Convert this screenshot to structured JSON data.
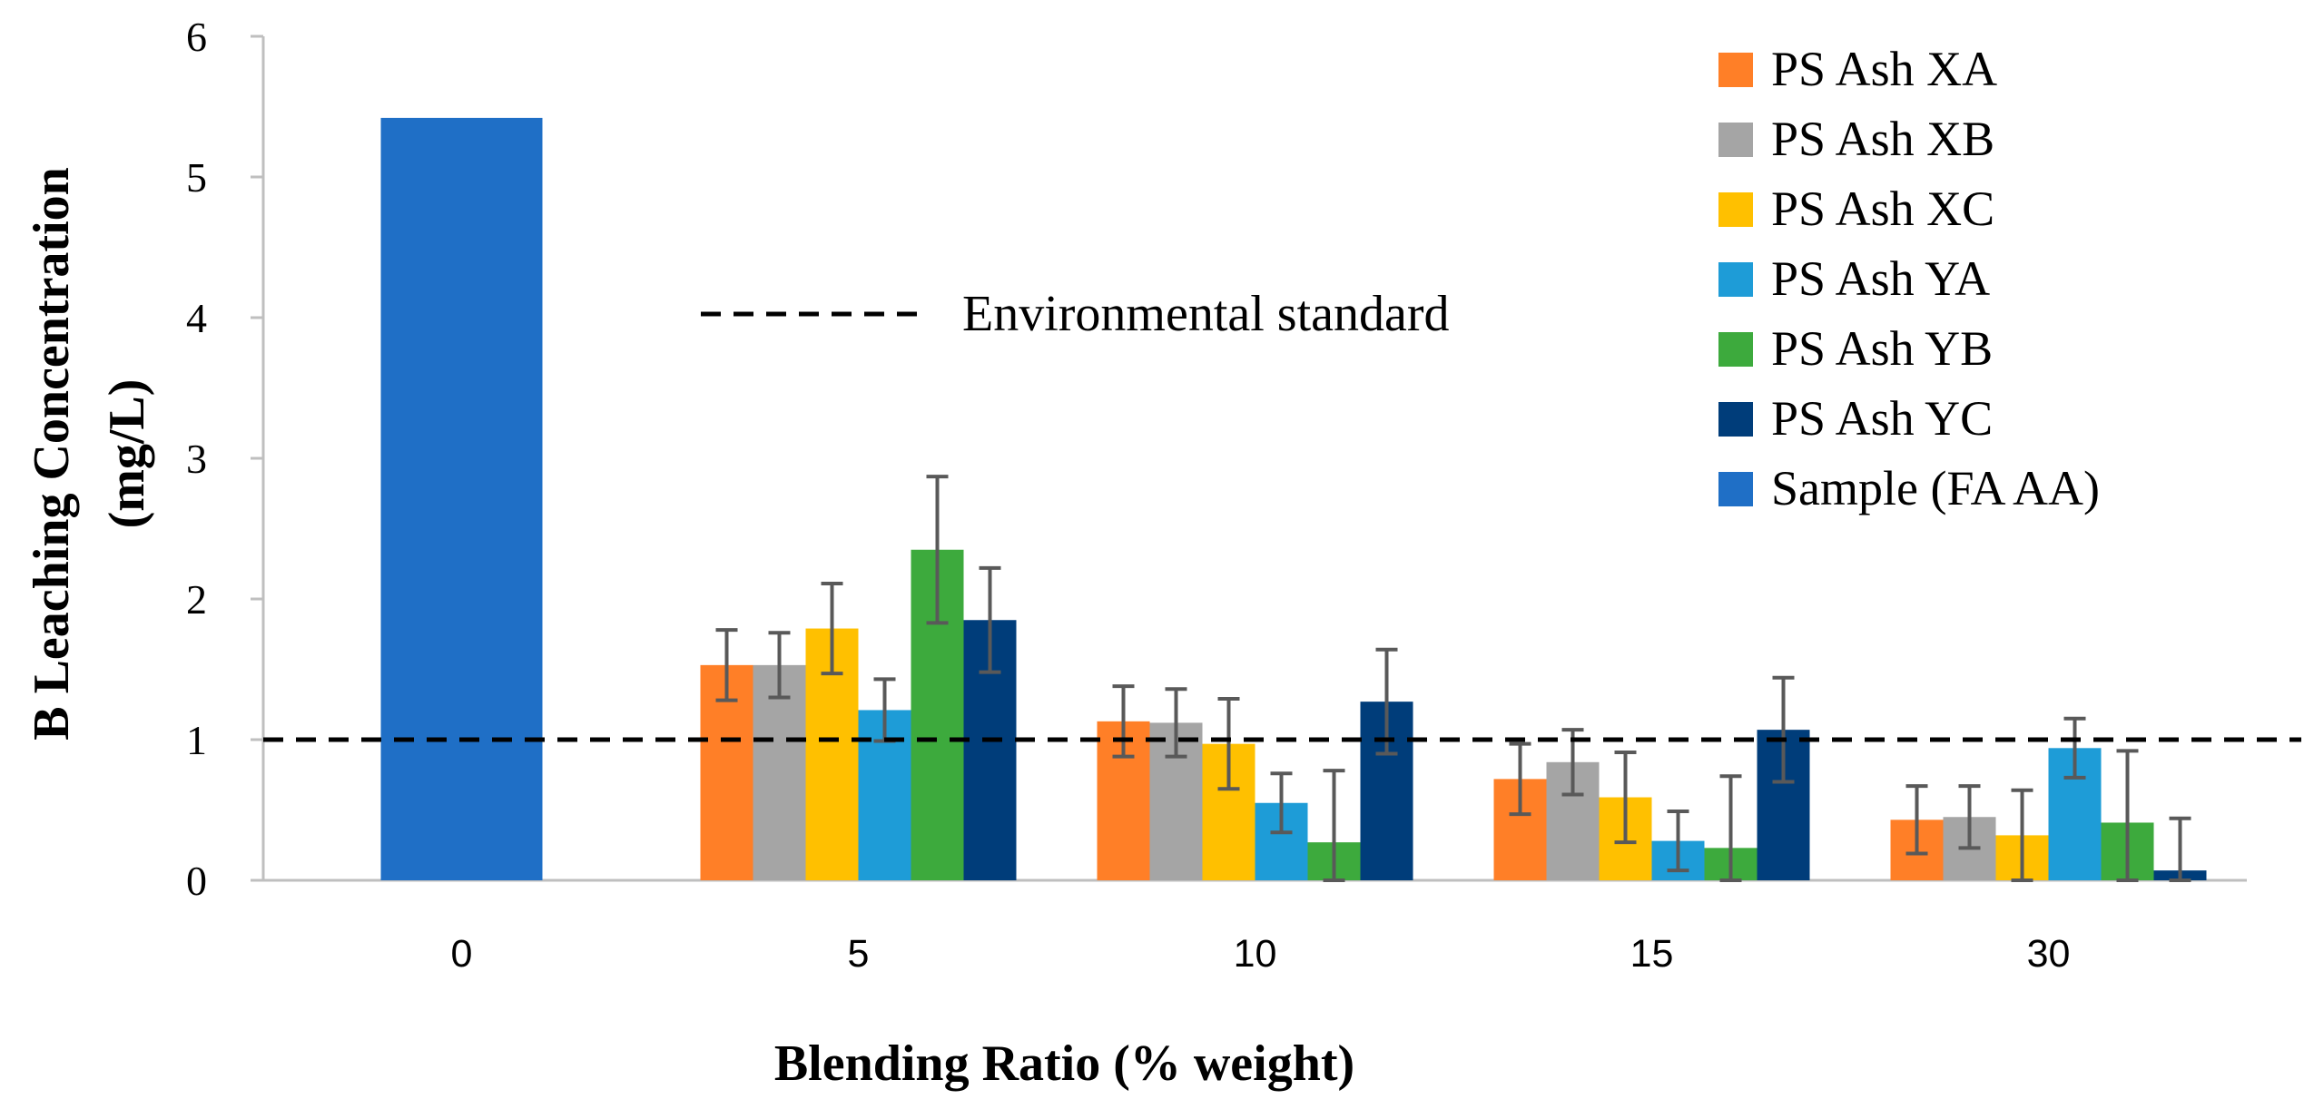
{
  "chart_data": {
    "type": "bar",
    "title": "",
    "xlabel": "Blending Ratio (% weight)",
    "ylabel": [
      "B Leaching Concentration",
      "(mg/L)"
    ],
    "ylim": [
      0,
      6
    ],
    "yticks": [
      0,
      1,
      2,
      3,
      4,
      5,
      6
    ],
    "categories": [
      "0",
      "5",
      "10",
      "15",
      "30"
    ],
    "reference_line": {
      "label": "Environmental standard",
      "value": 1.0,
      "style": "dashed"
    },
    "legend_position": "right",
    "series": [
      {
        "name": "PS Ash XA",
        "color": "#FF7F27",
        "values": [
          null,
          1.53,
          1.13,
          0.72,
          0.43
        ],
        "errors": [
          null,
          0.25,
          0.25,
          0.25,
          0.24
        ]
      },
      {
        "name": "PS Ash XB",
        "color": "#A5A5A5",
        "values": [
          null,
          1.53,
          1.12,
          0.84,
          0.45
        ],
        "errors": [
          null,
          0.23,
          0.24,
          0.23,
          0.22
        ]
      },
      {
        "name": "PS Ash XC",
        "color": "#FFC000",
        "values": [
          null,
          1.79,
          0.97,
          0.59,
          0.32
        ],
        "errors": [
          null,
          0.32,
          0.32,
          0.32,
          0.32
        ]
      },
      {
        "name": "PS Ash YA",
        "color": "#1E9CD7",
        "values": [
          null,
          1.21,
          0.55,
          0.28,
          0.94
        ],
        "errors": [
          null,
          0.22,
          0.21,
          0.21,
          0.21
        ]
      },
      {
        "name": "PS Ash YB",
        "color": "#3DAA3D",
        "values": [
          null,
          2.35,
          0.27,
          0.23,
          0.41
        ],
        "errors": [
          null,
          0.52,
          0.51,
          0.51,
          0.51
        ]
      },
      {
        "name": "PS Ash YC",
        "color": "#003D7A",
        "values": [
          null,
          1.85,
          1.27,
          1.07,
          0.07
        ],
        "errors": [
          null,
          0.37,
          0.37,
          0.37,
          0.37
        ]
      },
      {
        "name": "Sample (FA AA)",
        "color": "#1F6FC6",
        "values": [
          5.42,
          null,
          null,
          null,
          null
        ],
        "errors": [
          null,
          null,
          null,
          null,
          null
        ]
      }
    ]
  }
}
